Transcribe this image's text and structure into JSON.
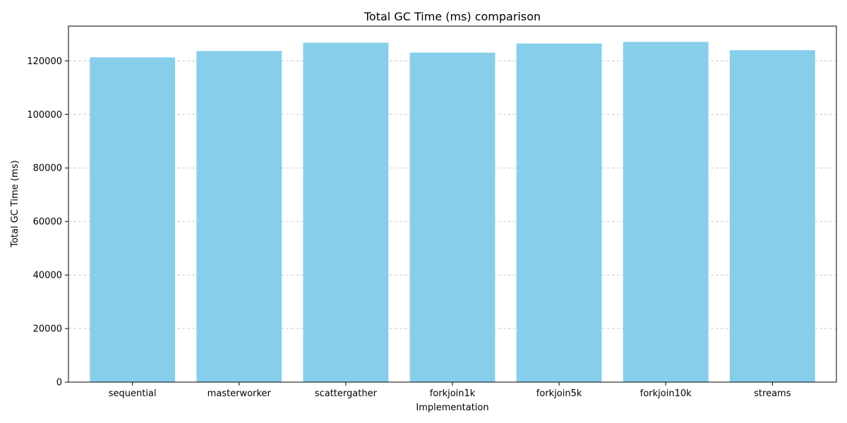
{
  "chart_data": {
    "type": "bar",
    "title": "Total GC Time (ms) comparison",
    "xlabel": "Implementation",
    "ylabel": "Total GC Time (ms)",
    "categories": [
      "sequential",
      "masterworker",
      "scattergather",
      "forkjoin1k",
      "forkjoin5k",
      "forkjoin10k",
      "streams"
    ],
    "values": [
      121300,
      123700,
      126800,
      123100,
      126500,
      127100,
      124000
    ],
    "ylim": [
      0,
      133000
    ],
    "yticks": [
      0,
      20000,
      40000,
      60000,
      80000,
      100000,
      120000
    ],
    "grid": "y-dashed",
    "bar_color": "#87CEEB",
    "grid_color": "#cccccc"
  }
}
